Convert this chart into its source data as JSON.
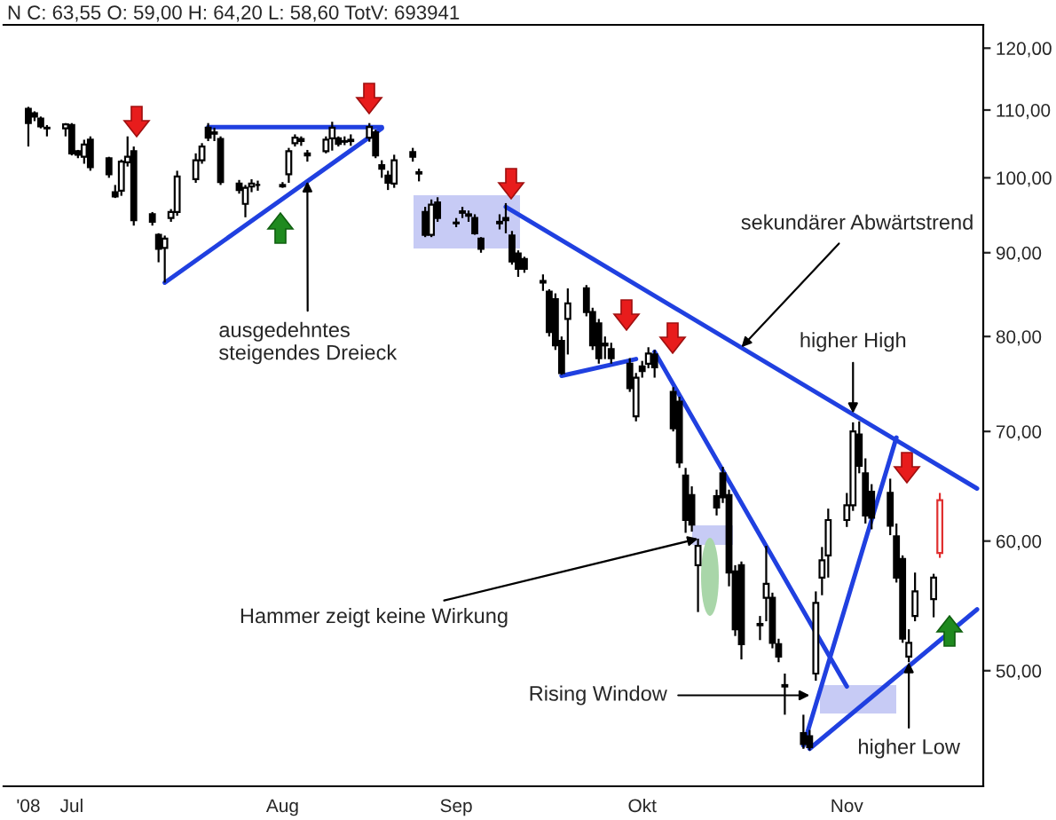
{
  "chart_data": {
    "type": "candlestick",
    "title": "N C: 63,55 O: 59,00 H: 64,20 L: 58,60 TotV: 693941",
    "x": [
      "2008-06-24",
      "2008-06-25",
      "2008-06-26",
      "2008-06-27",
      "2008-06-30",
      "2008-07-01",
      "2008-07-02",
      "2008-07-03",
      "2008-07-04",
      "2008-07-07",
      "2008-07-08",
      "2008-07-09",
      "2008-07-10",
      "2008-07-11",
      "2008-07-14",
      "2008-07-15",
      "2008-07-16",
      "2008-07-17",
      "2008-07-18",
      "2008-07-21",
      "2008-07-22",
      "2008-07-23",
      "2008-07-24",
      "2008-07-25",
      "2008-07-28",
      "2008-07-29",
      "2008-07-30",
      "2008-07-31",
      "2008-08-04",
      "2008-08-05",
      "2008-08-06",
      "2008-08-07",
      "2008-08-08",
      "2008-08-11",
      "2008-08-12",
      "2008-08-13",
      "2008-08-14",
      "2008-08-15",
      "2008-08-18",
      "2008-08-19",
      "2008-08-20",
      "2008-08-21",
      "2008-08-22",
      "2008-08-25",
      "2008-08-26",
      "2008-08-27",
      "2008-08-28",
      "2008-08-29",
      "2008-09-01",
      "2008-09-02",
      "2008-09-03",
      "2008-09-04",
      "2008-09-05",
      "2008-09-08",
      "2008-09-09",
      "2008-09-10",
      "2008-09-11",
      "2008-09-12",
      "2008-09-15",
      "2008-09-16",
      "2008-09-17",
      "2008-09-18",
      "2008-09-19",
      "2008-09-22",
      "2008-09-23",
      "2008-09-24",
      "2008-09-25",
      "2008-09-26",
      "2008-09-29",
      "2008-09-30",
      "2008-10-01",
      "2008-10-02",
      "2008-10-03",
      "2008-10-06",
      "2008-10-07",
      "2008-10-08",
      "2008-10-09",
      "2008-10-10",
      "2008-10-13",
      "2008-10-14",
      "2008-10-15",
      "2008-10-16",
      "2008-10-17",
      "2008-10-20",
      "2008-10-21",
      "2008-10-22",
      "2008-10-23",
      "2008-10-24",
      "2008-10-27",
      "2008-10-28",
      "2008-10-29",
      "2008-10-30",
      "2008-10-31",
      "2008-11-03",
      "2008-11-04",
      "2008-11-05",
      "2008-11-06",
      "2008-11-07",
      "2008-11-10",
      "2008-11-11",
      "2008-11-12",
      "2008-11-13",
      "2008-11-14",
      "2008-11-17",
      "2008-11-18"
    ],
    "ohlc": [
      [
        110.2,
        110.5,
        104.5,
        108
      ],
      [
        109.5,
        109.8,
        108.3,
        109
      ],
      [
        108.7,
        109,
        107.2,
        107.5
      ],
      [
        107.3,
        107.7,
        106,
        107.2
      ],
      [
        107.2,
        108,
        106,
        107.8
      ],
      [
        107.7,
        108,
        103.2,
        103.5
      ],
      [
        103.8,
        104,
        102.8,
        103.3
      ],
      [
        103,
        105.5,
        102,
        104.8
      ],
      [
        105.5,
        106,
        101,
        101.5
      ],
      [
        102.8,
        103,
        100,
        100.5
      ],
      [
        98,
        99,
        97.2,
        97.4
      ],
      [
        98.2,
        102.6,
        97.5,
        102.3
      ],
      [
        102.2,
        106,
        101.6,
        103
      ],
      [
        103.8,
        104.5,
        93.5,
        94.2
      ],
      [
        95,
        95.3,
        93.5,
        94
      ],
      [
        92.3,
        92.5,
        88.8,
        90.5
      ],
      [
        90.6,
        92.2,
        86.3,
        91.8
      ],
      [
        94.5,
        95.7,
        94,
        95.3
      ],
      [
        95.3,
        101,
        94.8,
        100.2
      ],
      [
        99.8,
        103.5,
        99.3,
        102.5
      ],
      [
        102.5,
        105,
        102,
        104.5
      ],
      [
        107.3,
        108,
        105.3,
        105.8
      ],
      [
        106.6,
        107.3,
        105.3,
        106.4
      ],
      [
        105.6,
        106,
        99,
        99.4
      ],
      [
        99.2,
        99.7,
        97.8,
        98.3
      ],
      [
        96.4,
        99,
        94.6,
        98.6
      ],
      [
        98.8,
        99.8,
        98,
        99.2
      ],
      [
        99,
        99.6,
        98.2,
        99
      ],
      [
        99,
        99.4,
        98.6,
        98.8
      ],
      [
        100.5,
        104.3,
        99.3,
        103.8
      ],
      [
        105,
        106.3,
        104.5,
        105.8
      ],
      [
        105.3,
        106,
        104.6,
        105.6
      ],
      [
        103.2,
        104,
        102.3,
        103.5
      ],
      [
        103.8,
        106,
        103.5,
        105.5
      ],
      [
        105.7,
        108.2,
        103.9,
        107.3
      ],
      [
        105.7,
        106,
        104.5,
        104.9
      ],
      [
        105.3,
        106,
        104.7,
        105.2
      ],
      [
        105.5,
        106.3,
        104.6,
        105.3
      ],
      [
        105.8,
        108,
        105.2,
        107.4
      ],
      [
        106.6,
        107,
        102.8,
        103.2
      ],
      [
        101.8,
        102.5,
        100,
        101.3
      ],
      [
        100.3,
        101,
        98.3,
        99.3
      ],
      [
        99.2,
        103.3,
        98.6,
        102.5
      ],
      [
        103.7,
        104.3,
        102.3,
        103
      ],
      [
        100.8,
        101.3,
        99.5,
        100.6
      ],
      [
        95.3,
        96,
        92,
        92.3
      ],
      [
        92.3,
        97,
        92,
        96.3
      ],
      [
        96.6,
        97.3,
        94,
        94.5
      ],
      [
        93.8,
        94.5,
        93.3,
        93.9
      ],
      [
        95.2,
        96,
        94.5,
        95.4
      ],
      [
        95,
        95.5,
        94,
        94.8
      ],
      [
        94.5,
        95,
        92.3,
        92.5
      ],
      [
        91.8,
        92,
        90,
        90.5
      ],
      [
        94,
        95,
        93,
        93.8
      ],
      [
        94.5,
        96.5,
        92.5,
        94.2
      ],
      [
        92.2,
        92.8,
        88.5,
        88.9
      ],
      [
        89.9,
        90.3,
        87,
        88
      ],
      [
        89.2,
        89.5,
        87.5,
        88
      ],
      [
        86.5,
        87.3,
        85.3,
        86.3
      ],
      [
        85.2,
        85.5,
        80,
        80.5
      ],
      [
        84.3,
        85,
        78.5,
        79
      ],
      [
        79.5,
        80,
        75.8,
        76
      ],
      [
        82,
        85.6,
        78,
        83.8
      ],
      [
        85.6,
        86,
        82.3,
        82.8
      ],
      [
        82.8,
        83.3,
        78.5,
        79
      ],
      [
        81.5,
        82,
        77,
        77.6
      ],
      [
        79.2,
        80,
        77.5,
        79
      ],
      [
        78.6,
        79.3,
        77,
        77.6
      ],
      [
        77,
        77.6,
        74,
        74.4
      ],
      [
        71.5,
        76,
        71,
        75.5
      ],
      [
        76.7,
        77.3,
        75.5,
        76.2
      ],
      [
        77,
        78.8,
        76.5,
        78.1
      ],
      [
        78,
        78.5,
        75.5,
        76.6
      ],
      [
        74,
        74.5,
        70,
        70.3
      ],
      [
        73,
        73.5,
        66.5,
        67
      ],
      [
        65.8,
        66.5,
        60.7,
        61.8
      ],
      [
        64,
        64.8,
        60.8,
        61.4
      ],
      [
        58,
        60.2,
        54.3,
        59.6
      ],
      [
        63.9,
        64.5,
        62.2,
        62.9
      ],
      [
        66,
        66.6,
        63.3,
        63.8
      ],
      [
        64,
        64.5,
        56.3,
        57.4
      ],
      [
        57.5,
        58,
        52.5,
        53
      ],
      [
        58,
        58.3,
        50.8,
        51.9
      ],
      [
        53.3,
        54,
        52.2,
        53.4
      ],
      [
        55.4,
        59.6,
        53.6,
        56.5
      ],
      [
        55.4,
        55.8,
        51.6,
        52
      ],
      [
        51.9,
        52.3,
        50.6,
        51
      ],
      [
        48.9,
        49.8,
        47,
        49
      ],
      [
        45.8,
        47,
        44.8,
        45.1
      ],
      [
        45.6,
        46,
        44.7,
        44.9
      ],
      [
        49.8,
        55.9,
        49.3,
        55
      ],
      [
        57,
        59.5,
        55.6,
        58.4
      ],
      [
        58.8,
        62.8,
        57,
        61.8
      ],
      [
        61.8,
        64.2,
        61.2,
        63.1
      ],
      [
        63.1,
        70.9,
        62.6,
        70
      ],
      [
        69.7,
        71,
        66,
        66.7
      ],
      [
        66,
        67.4,
        61.5,
        62.2
      ],
      [
        64.3,
        65,
        61,
        62
      ],
      [
        64.2,
        65.5,
        60.5,
        61.3
      ],
      [
        60.4,
        61.5,
        56.6,
        57
      ],
      [
        58.5,
        58.8,
        52,
        52.3
      ],
      [
        51,
        53,
        50.6,
        52
      ],
      [
        54,
        57.4,
        53.6,
        55.9
      ],
      [
        55.3,
        57.3,
        53.9,
        57
      ],
      [
        59,
        64.2,
        58.6,
        63.55
      ]
    ],
    "colors": [
      "#000000",
      "#000000",
      "#000000",
      "#000000",
      "#000000",
      "#000000",
      "#000000",
      "#000000",
      "#000000",
      "#000000",
      "#000000",
      "#000000",
      "#000000",
      "#000000",
      "#000000",
      "#000000",
      "#000000",
      "#000000",
      "#000000",
      "#000000",
      "#000000",
      "#000000",
      "#000000",
      "#000000",
      "#000000",
      "#000000",
      "#000000",
      "#000000",
      "#000000",
      "#000000",
      "#000000",
      "#000000",
      "#000000",
      "#000000",
      "#000000",
      "#000000",
      "#000000",
      "#000000",
      "#000000",
      "#000000",
      "#000000",
      "#000000",
      "#000000",
      "#000000",
      "#000000",
      "#000000",
      "#000000",
      "#000000",
      "#000000",
      "#000000",
      "#000000",
      "#000000",
      "#000000",
      "#000000",
      "#000000",
      "#000000",
      "#000000",
      "#000000",
      "#000000",
      "#000000",
      "#000000",
      "#000000",
      "#000000",
      "#000000",
      "#000000",
      "#000000",
      "#000000",
      "#000000",
      "#000000",
      "#000000",
      "#000000",
      "#000000",
      "#000000",
      "#000000",
      "#000000",
      "#000000",
      "#000000",
      "#000000",
      "#000000",
      "#000000",
      "#000000",
      "#000000",
      "#000000",
      "#000000",
      "#000000",
      "#000000",
      "#000000",
      "#000000",
      "#000000",
      "#000000",
      "#000000",
      "#000000",
      "#000000",
      "#000000",
      "#000000",
      "#000000",
      "#000000",
      "#000000",
      "#000000",
      "#000000",
      "#000000",
      "#000000",
      "#000000",
      "#000000",
      "#e03030"
    ],
    "series": [
      {
        "type": "line",
        "x": [
          "2008-07-23",
          "2008-08-20"
        ],
        "values": [
          107.4,
          107.4
        ],
        "color": "#2040e0"
      },
      {
        "type": "line",
        "x": [
          "2008-07-16",
          "2008-08-20"
        ],
        "values": [
          86.3,
          107.2
        ],
        "color": "#2040e0"
      },
      {
        "type": "line",
        "x": [
          "2008-09-09",
          "2008-11-24"
        ],
        "values": [
          96,
          64.6
        ],
        "color": "#2040e0"
      },
      {
        "type": "line",
        "x": [
          "2008-09-18",
          "2008-09-30"
        ],
        "values": [
          75.7,
          77.5
        ],
        "color": "#2040e0"
      },
      {
        "type": "line",
        "x": [
          "2008-10-03",
          "2008-11-03"
        ],
        "values": [
          78.3,
          48.9
        ],
        "color": "#2040e0"
      },
      {
        "type": "line",
        "x": [
          "2008-10-27",
          "2008-11-11"
        ],
        "values": [
          45,
          69.4
        ],
        "color": "#2040e0"
      },
      {
        "type": "line",
        "x": [
          "2008-10-28",
          "2008-11-24"
        ],
        "values": [
          44.8,
          54.5
        ],
        "color": "#2040e0"
      }
    ],
    "annotations": [
      {
        "text": "ausgedehntes\nsteigendes Dreieck",
        "x": "2008-08-08",
        "y": 99.5
      },
      {
        "text": "Hammer zeigt keine Wirkung",
        "x": "2008-10-10",
        "y": 60.2
      },
      {
        "text": "sekundärer Abwärtstrend",
        "x": "2008-10-17",
        "y": 78.8
      },
      {
        "text": "higher High",
        "x": "2008-11-04",
        "y": 71.8
      },
      {
        "text": "Rising Window",
        "x": "2008-10-28",
        "y": 48.3
      },
      {
        "text": "higher Low",
        "x": "2008-11-13",
        "y": 50.6
      }
    ],
    "xlim": [
      "2008-06-20",
      "2008-11-25"
    ],
    "xticks": [
      {
        "value": "2008-06-24",
        "label": "'08"
      },
      {
        "value": "2008-07-01",
        "label": "Jul"
      },
      {
        "value": "2008-08-04",
        "label": "Aug"
      },
      {
        "value": "2008-09-01",
        "label": "Sep"
      },
      {
        "value": "2008-10-01",
        "label": "Okt"
      },
      {
        "value": "2008-11-03",
        "label": "Nov"
      }
    ],
    "log": true,
    "ylim": [
      42.5,
      124
    ],
    "yticks": [
      {
        "value": 50,
        "label": "50,00"
      },
      {
        "value": 60,
        "label": "60,00"
      },
      {
        "value": 70,
        "label": "70,00"
      },
      {
        "value": 80,
        "label": "80,00"
      },
      {
        "value": 90,
        "label": "90,00"
      },
      {
        "value": 100,
        "label": "100,00"
      },
      {
        "value": 110,
        "label": "110,00"
      },
      {
        "value": 120,
        "label": "120,00"
      }
    ]
  }
}
